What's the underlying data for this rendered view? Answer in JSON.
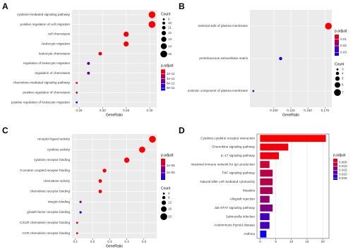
{
  "chart_data": [
    {
      "type": "dot",
      "label": "A",
      "xlabel": "GeneRatio",
      "categories": [
        "cytokine-mediated signaling pathway",
        "positive regulation of cell migration",
        "cell chemotaxis",
        "leukocyte migration",
        "leukocyte chemotaxis",
        "regulation of leukocyte migration",
        "regulation of chemotaxis",
        "chemokine-mediated signaling pathway",
        "positive regulation of chemotaxis",
        "positive regulation of leukocyte migration"
      ],
      "values": [
        0.405,
        0.405,
        0.35,
        0.35,
        0.295,
        0.27,
        0.27,
        0.245,
        0.245,
        0.245
      ],
      "counts": [
        15,
        15,
        13,
        13,
        11,
        10,
        10,
        9,
        9,
        9
      ],
      "p_adjust": [
        1e-12,
        2e-12,
        3e-12,
        3e-12,
        1e-11,
        6e-11,
        6e-11,
        2e-11,
        1.5e-11,
        8e-11
      ],
      "xlim": [
        0.235,
        0.415
      ],
      "xticks": [
        0.25,
        {
          "value": 0.3,
          "label": "0.30"
        },
        0.35,
        {
          "value": 0.4,
          "label": "0.40"
        }
      ],
      "size_legend": {
        "title": "Count",
        "ticks": [
          9,
          10,
          11,
          12,
          13,
          14,
          15
        ]
      },
      "color_legend": {
        "title": "p.adjust",
        "ticks": [
          2e-11,
          4e-11,
          6e-11,
          8e-11
        ],
        "lim": [
          1e-12,
          9e-11
        ],
        "colors": [
          "#ff0000",
          "#0000ff"
        ]
      }
    },
    {
      "type": "dot",
      "label": "B",
      "xlabel": "GeneRatio",
      "categories": [
        "external side of plasma membrane",
        "proteinaceous extracellular matrix",
        "extrinsic component of plasma membrane"
      ],
      "values": [
        0.18,
        0.11,
        0.07
      ],
      "counts": [
        7,
        4,
        3
      ],
      "p_adjust": [
        0.004,
        0.033,
        0.028
      ],
      "xlim": [
        0.065,
        0.185
      ],
      "xticks": [
        {
          "value": 0.1,
          "label": "0.100"
        },
        0.125,
        {
          "value": 0.15,
          "label": "0.150"
        },
        0.175
      ],
      "color_legend": {
        "title": "p.adjust",
        "ticks": [
          0.01,
          0.02,
          0.03
        ],
        "lim": [
          0.003,
          0.035
        ],
        "colors": [
          "#ff0000",
          "#0000ff"
        ]
      },
      "size_legend": {
        "title": "Count",
        "ticks": [
          3,
          4,
          5,
          6,
          7
        ]
      }
    },
    {
      "type": "dot",
      "label": "C",
      "xlabel": "GeneRatio",
      "categories": [
        "receptor ligand activity",
        "cytokine activity",
        "cytokine receptor binding",
        "G-protein coupled receptor binding",
        "chemokine activity",
        "chemokine receptor binding",
        "integrin binding",
        "growth factor receptor binding",
        "CXCR chemokine receptor binding",
        "CCR chemokine receptor binding"
      ],
      "values": [
        0.55,
        0.49,
        0.4,
        0.27,
        0.245,
        0.245,
        0.13,
        0.13,
        0.11,
        0.11
      ],
      "counts": [
        20,
        18,
        15,
        10,
        9,
        9,
        5,
        5,
        4,
        4
      ],
      "p_adjust": [
        1e-07,
        1e-07,
        1e-07,
        1e-06,
        1e-06,
        1e-06,
        1.5e-05,
        2.8e-05,
        5e-06,
        3e-06
      ],
      "xlim": [
        0.08,
        0.575
      ],
      "xticks": [
        0.1,
        0.2,
        0.3,
        0.4,
        0.5
      ],
      "color_legend": {
        "title": "p.adjust",
        "ticks": [
          {
            "value": 1e-05,
            "label": "1e-05"
          },
          {
            "value": 2e-05,
            "label": "2e-05"
          }
        ],
        "lim": [
          1e-07,
          3e-05
        ],
        "colors": [
          "#ff0000",
          "#0000ff"
        ]
      },
      "size_legend": {
        "title": "Count",
        "ticks": [
          4,
          8,
          12,
          16,
          20
        ]
      }
    },
    {
      "type": "hbar",
      "label": "D",
      "categories": [
        "Cytokine-cytokine receptor interaction",
        "Chemokine signaling pathway",
        "IL-17 signaling pathway",
        "Intestinal immune network for IgA production",
        "TNF signaling pathway",
        "Natural killer cell mediated cytotoxicity",
        "Measles",
        "Allograft rejection",
        "Jak-STAT signaling pathway",
        "Salmonella infection",
        "Autoimmune thyroid disease",
        "Asthma"
      ],
      "values": [
        21,
        9,
        6,
        3,
        4,
        4,
        4,
        3,
        4,
        3,
        3,
        2
      ],
      "p_adjust": [
        0.0005,
        0.002,
        0.002,
        0.006,
        0.008,
        0.008,
        0.009,
        0.012,
        0.014,
        0.02,
        0.02,
        0.026
      ],
      "xlim": [
        -1,
        22
      ],
      "xticks": [
        0,
        5,
        10,
        15,
        20
      ],
      "color_legend": {
        "title": "p.adjust",
        "ticks": [
          0.005,
          {
            "value": 0.01,
            "label": "0.010"
          },
          0.015,
          {
            "value": 0.02,
            "label": "0.020"
          },
          0.025
        ],
        "lim": [
          0.0005,
          0.027
        ],
        "colors": [
          "#ff0000",
          "#0000ff"
        ]
      }
    }
  ]
}
